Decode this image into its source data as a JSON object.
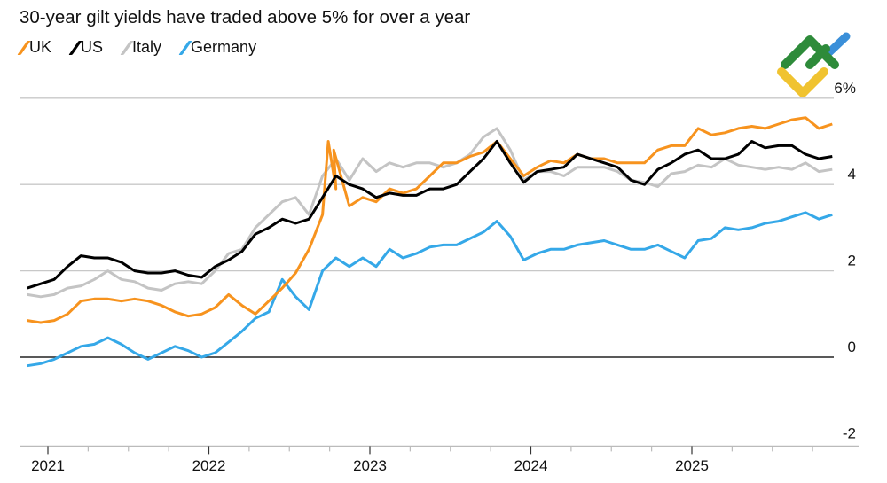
{
  "chart_data": {
    "type": "line",
    "title": "30-year gilt yields have traded above 5% for over a year",
    "xlabel": "",
    "ylabel": "",
    "x_ticks": [
      "2021",
      "2022",
      "2023",
      "2024",
      "2025"
    ],
    "y_ticks": [
      {
        "value": 6,
        "label": "6%"
      },
      {
        "value": 4,
        "label": "4"
      },
      {
        "value": 2,
        "label": "2"
      },
      {
        "value": 0,
        "label": "0"
      },
      {
        "value": -2,
        "label": "-2"
      }
    ],
    "ylim": [
      -2,
      6
    ],
    "xlim": [
      "2020-10",
      "2025-12"
    ],
    "grid": true,
    "legend_position": "top-left",
    "series": [
      {
        "name": "UK",
        "color": "#f7931e",
        "x": [
          "2020-11",
          "2020-12",
          "2021-01",
          "2021-02",
          "2021-03",
          "2021-04",
          "2021-05",
          "2021-06",
          "2021-07",
          "2021-08",
          "2021-09",
          "2021-10",
          "2021-11",
          "2021-12",
          "2022-01",
          "2022-02",
          "2022-03",
          "2022-04",
          "2022-05",
          "2022-06",
          "2022-07",
          "2022-08",
          "2022-09",
          "2022-09-28",
          "2022-10",
          "2022-10-10",
          "2022-11",
          "2022-12",
          "2023-01",
          "2023-02",
          "2023-03",
          "2023-04",
          "2023-05",
          "2023-06",
          "2023-07",
          "2023-08",
          "2023-09",
          "2023-10",
          "2023-11",
          "2023-12",
          "2024-01",
          "2024-02",
          "2024-03",
          "2024-04",
          "2024-05",
          "2024-06",
          "2024-07",
          "2024-08",
          "2024-09",
          "2024-10",
          "2024-11",
          "2024-12",
          "2025-01",
          "2025-02",
          "2025-03",
          "2025-04",
          "2025-05",
          "2025-06",
          "2025-07",
          "2025-08",
          "2025-09",
          "2025-10",
          "2025-11"
        ],
        "values": [
          0.85,
          0.8,
          0.85,
          1.0,
          1.3,
          1.35,
          1.35,
          1.3,
          1.35,
          1.3,
          1.2,
          1.05,
          0.95,
          1.0,
          1.15,
          1.45,
          1.2,
          1.0,
          1.3,
          1.6,
          1.95,
          2.5,
          3.3,
          5.0,
          3.9,
          4.8,
          3.5,
          3.7,
          3.6,
          3.9,
          3.8,
          3.9,
          4.2,
          4.5,
          4.5,
          4.65,
          4.75,
          5.0,
          4.6,
          4.2,
          4.4,
          4.55,
          4.5,
          4.7,
          4.6,
          4.6,
          4.5,
          4.5,
          4.5,
          4.8,
          4.9,
          4.9,
          5.3,
          5.15,
          5.2,
          5.3,
          5.35,
          5.3,
          5.4,
          5.5,
          5.55,
          5.3,
          5.4
        ]
      },
      {
        "name": "US",
        "color": "#000000",
        "x": [
          "2020-11",
          "2020-12",
          "2021-01",
          "2021-02",
          "2021-03",
          "2021-04",
          "2021-05",
          "2021-06",
          "2021-07",
          "2021-08",
          "2021-09",
          "2021-10",
          "2021-11",
          "2021-12",
          "2022-01",
          "2022-02",
          "2022-03",
          "2022-04",
          "2022-05",
          "2022-06",
          "2022-07",
          "2022-08",
          "2022-09",
          "2022-10",
          "2022-11",
          "2022-12",
          "2023-01",
          "2023-02",
          "2023-03",
          "2023-04",
          "2023-05",
          "2023-06",
          "2023-07",
          "2023-08",
          "2023-09",
          "2023-10",
          "2023-11",
          "2023-12",
          "2024-01",
          "2024-02",
          "2024-03",
          "2024-04",
          "2024-05",
          "2024-06",
          "2024-07",
          "2024-08",
          "2024-09",
          "2024-10",
          "2024-11",
          "2024-12",
          "2025-01",
          "2025-02",
          "2025-03",
          "2025-04",
          "2025-05",
          "2025-06",
          "2025-07",
          "2025-08",
          "2025-09",
          "2025-10",
          "2025-11"
        ],
        "values": [
          1.6,
          1.7,
          1.8,
          2.1,
          2.35,
          2.3,
          2.3,
          2.2,
          2.0,
          1.95,
          1.95,
          2.0,
          1.9,
          1.85,
          2.1,
          2.25,
          2.45,
          2.85,
          3.0,
          3.2,
          3.1,
          3.2,
          3.7,
          4.2,
          4.0,
          3.9,
          3.7,
          3.8,
          3.75,
          3.75,
          3.9,
          3.9,
          4.0,
          4.3,
          4.6,
          5.0,
          4.5,
          4.05,
          4.3,
          4.35,
          4.4,
          4.7,
          4.6,
          4.5,
          4.4,
          4.1,
          4.0,
          4.35,
          4.5,
          4.7,
          4.8,
          4.6,
          4.6,
          4.7,
          5.0,
          4.85,
          4.9,
          4.9,
          4.7,
          4.6,
          4.65
        ]
      },
      {
        "name": "Italy",
        "color": "#c4c4c4",
        "x": [
          "2020-11",
          "2020-12",
          "2021-01",
          "2021-02",
          "2021-03",
          "2021-04",
          "2021-05",
          "2021-06",
          "2021-07",
          "2021-08",
          "2021-09",
          "2021-10",
          "2021-11",
          "2021-12",
          "2022-01",
          "2022-02",
          "2022-03",
          "2022-04",
          "2022-05",
          "2022-06",
          "2022-07",
          "2022-08",
          "2022-09",
          "2022-10",
          "2022-11",
          "2022-12",
          "2023-01",
          "2023-02",
          "2023-03",
          "2023-04",
          "2023-05",
          "2023-06",
          "2023-07",
          "2023-08",
          "2023-09",
          "2023-10",
          "2023-11",
          "2023-12",
          "2024-01",
          "2024-02",
          "2024-03",
          "2024-04",
          "2024-05",
          "2024-06",
          "2024-07",
          "2024-08",
          "2024-09",
          "2024-10",
          "2024-11",
          "2024-12",
          "2025-01",
          "2025-02",
          "2025-03",
          "2025-04",
          "2025-05",
          "2025-06",
          "2025-07",
          "2025-08",
          "2025-09",
          "2025-10",
          "2025-11"
        ],
        "values": [
          1.45,
          1.4,
          1.45,
          1.6,
          1.65,
          1.8,
          2.0,
          1.8,
          1.75,
          1.6,
          1.55,
          1.7,
          1.75,
          1.7,
          2.0,
          2.4,
          2.5,
          3.0,
          3.3,
          3.6,
          3.7,
          3.3,
          4.2,
          4.6,
          4.1,
          4.6,
          4.3,
          4.5,
          4.4,
          4.5,
          4.5,
          4.4,
          4.5,
          4.7,
          5.1,
          5.3,
          4.8,
          4.1,
          4.3,
          4.3,
          4.2,
          4.4,
          4.4,
          4.4,
          4.3,
          4.1,
          4.05,
          3.95,
          4.25,
          4.3,
          4.45,
          4.4,
          4.6,
          4.45,
          4.4,
          4.35,
          4.4,
          4.35,
          4.5,
          4.3,
          4.35
        ]
      },
      {
        "name": "Germany",
        "color": "#35a8e8",
        "x": [
          "2020-11",
          "2020-12",
          "2021-01",
          "2021-02",
          "2021-03",
          "2021-04",
          "2021-05",
          "2021-06",
          "2021-07",
          "2021-08",
          "2021-09",
          "2021-10",
          "2021-11",
          "2021-12",
          "2022-01",
          "2022-02",
          "2022-03",
          "2022-04",
          "2022-05",
          "2022-06",
          "2022-07",
          "2022-08",
          "2022-09",
          "2022-10",
          "2022-11",
          "2022-12",
          "2023-01",
          "2023-02",
          "2023-03",
          "2023-04",
          "2023-05",
          "2023-06",
          "2023-07",
          "2023-08",
          "2023-09",
          "2023-10",
          "2023-11",
          "2023-12",
          "2024-01",
          "2024-02",
          "2024-03",
          "2024-04",
          "2024-05",
          "2024-06",
          "2024-07",
          "2024-08",
          "2024-09",
          "2024-10",
          "2024-11",
          "2024-12",
          "2025-01",
          "2025-02",
          "2025-03",
          "2025-04",
          "2025-05",
          "2025-06",
          "2025-07",
          "2025-08",
          "2025-09",
          "2025-10",
          "2025-11"
        ],
        "values": [
          -0.2,
          -0.15,
          -0.05,
          0.1,
          0.25,
          0.3,
          0.45,
          0.3,
          0.1,
          -0.05,
          0.1,
          0.25,
          0.15,
          0.0,
          0.1,
          0.35,
          0.6,
          0.9,
          1.05,
          1.8,
          1.4,
          1.1,
          2.0,
          2.3,
          2.1,
          2.3,
          2.1,
          2.5,
          2.3,
          2.4,
          2.55,
          2.6,
          2.6,
          2.75,
          2.9,
          3.15,
          2.8,
          2.25,
          2.4,
          2.5,
          2.5,
          2.6,
          2.65,
          2.7,
          2.6,
          2.5,
          2.5,
          2.6,
          2.45,
          2.3,
          2.7,
          2.75,
          3.0,
          2.95,
          3.0,
          3.1,
          3.15,
          3.25,
          3.35,
          3.2,
          3.3
        ]
      }
    ]
  },
  "logo": {
    "colors": [
      "#2e8b3a",
      "#3a8fd9",
      "#f0c330"
    ]
  }
}
